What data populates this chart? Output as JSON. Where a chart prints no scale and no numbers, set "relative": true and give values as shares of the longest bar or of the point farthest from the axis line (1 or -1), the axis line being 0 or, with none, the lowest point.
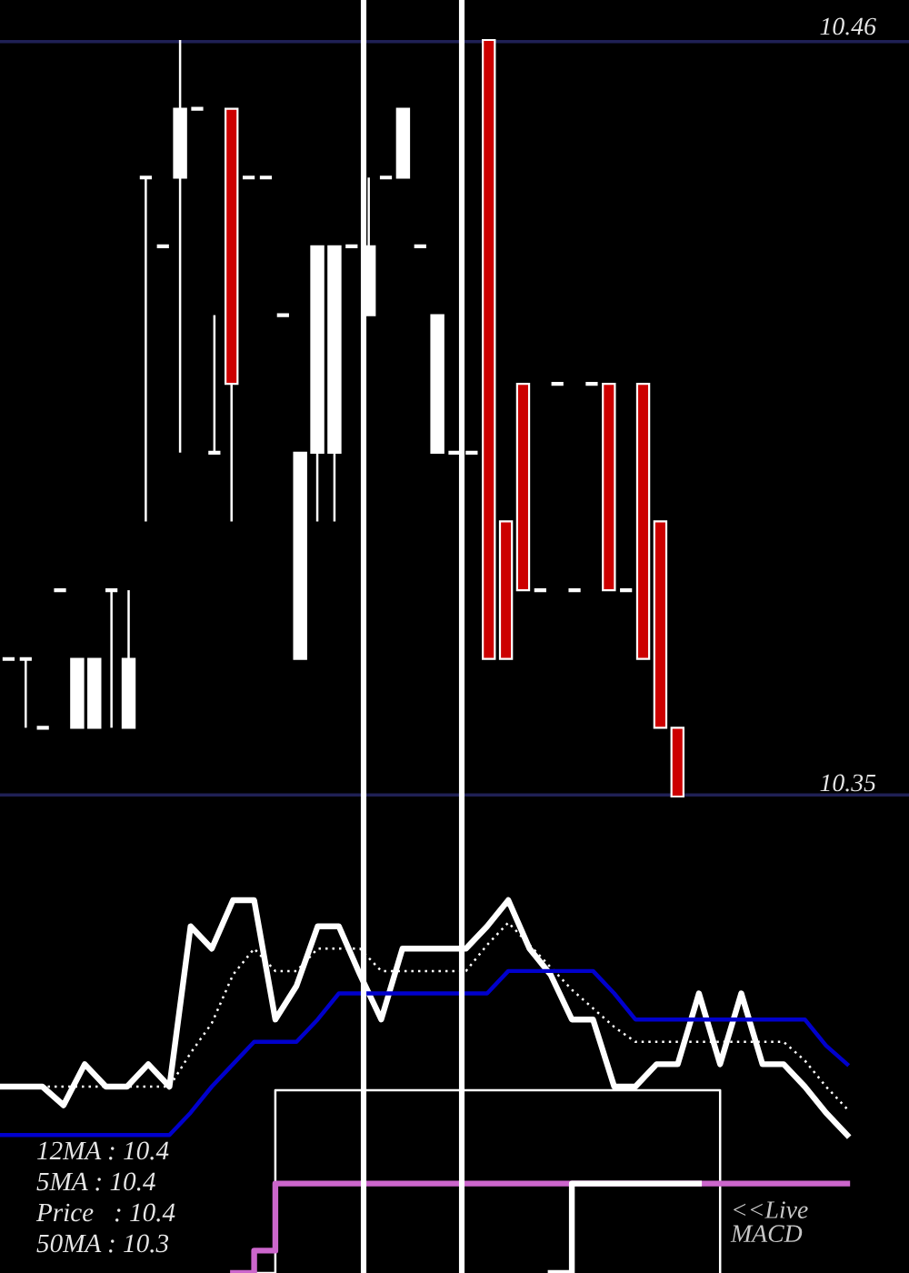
{
  "chart_data": [
    {
      "type": "candlestick",
      "categories": [
        null,
        null,
        null,
        null,
        null,
        null,
        null,
        null,
        null,
        null,
        null,
        null,
        null,
        null,
        null,
        null,
        null,
        null,
        null,
        null,
        null,
        null,
        null,
        null,
        null,
        null,
        null,
        null,
        null,
        null,
        null,
        null,
        null,
        null,
        null,
        null,
        null,
        null,
        null,
        null,
        null,
        null,
        null,
        null,
        null,
        null,
        null,
        null,
        null,
        null,
        null,
        null,
        null
      ],
      "ohlc": [
        [
          10.37,
          10.37,
          10.37,
          10.37
        ],
        [
          10.37,
          10.37,
          10.36,
          10.37
        ],
        [
          10.36,
          10.36,
          10.36,
          10.36
        ],
        [
          10.38,
          10.38,
          10.38,
          10.38
        ],
        [
          10.36,
          10.37,
          10.36,
          10.37
        ],
        [
          10.36,
          10.37,
          10.36,
          10.37
        ],
        [
          10.38,
          10.38,
          10.36,
          10.38
        ],
        [
          10.36,
          10.38,
          10.36,
          10.37
        ],
        [
          10.44,
          10.44,
          10.39,
          10.44
        ],
        [
          10.43,
          10.43,
          10.43,
          10.43
        ],
        [
          10.44,
          10.46,
          10.4,
          10.45
        ],
        [
          10.45,
          10.45,
          10.45,
          10.45
        ],
        [
          10.4,
          10.42,
          10.4,
          10.4
        ],
        [
          10.45,
          10.45,
          10.39,
          10.41
        ],
        [
          10.44,
          10.44,
          10.44,
          10.44
        ],
        [
          10.44,
          10.44,
          10.44,
          10.44
        ],
        [
          10.42,
          10.42,
          10.42,
          10.42
        ],
        [
          10.37,
          10.4,
          10.37,
          10.4
        ],
        [
          10.4,
          10.43,
          10.39,
          10.43
        ],
        [
          10.4,
          10.43,
          10.39,
          10.43
        ],
        [
          10.43,
          10.43,
          10.43,
          10.43
        ],
        [
          10.42,
          10.44,
          10.42,
          10.43
        ],
        [
          10.44,
          10.44,
          10.44,
          10.44
        ],
        [
          10.44,
          10.45,
          10.44,
          10.45
        ],
        [
          10.43,
          10.43,
          10.43,
          10.43
        ],
        [
          10.4,
          10.42,
          10.4,
          10.42
        ],
        [
          10.4,
          10.4,
          10.4,
          10.4
        ],
        [
          10.4,
          10.4,
          10.4,
          10.4
        ],
        [
          10.46,
          10.46,
          10.37,
          10.37
        ],
        [
          10.39,
          10.39,
          10.37,
          10.37
        ],
        [
          10.41,
          10.41,
          10.38,
          10.38
        ],
        [
          10.38,
          10.38,
          10.38,
          10.38
        ],
        [
          10.41,
          10.41,
          10.41,
          10.41
        ],
        [
          10.38,
          10.38,
          10.38,
          10.38
        ],
        [
          10.41,
          10.41,
          10.41,
          10.41
        ],
        [
          10.41,
          10.41,
          10.38,
          10.38
        ],
        [
          10.38,
          10.38,
          10.38,
          10.38
        ],
        [
          10.41,
          10.41,
          10.37,
          10.37
        ],
        [
          10.39,
          10.39,
          10.36,
          10.36
        ],
        [
          10.36,
          10.36,
          10.35,
          10.35
        ],
        null,
        null,
        null,
        null,
        null,
        null,
        null,
        null,
        null,
        null,
        null,
        null,
        null
      ],
      "colors": [
        "#ffffff",
        "#ffffff",
        "#ffffff",
        "#ffffff",
        "#ffffff",
        "#ffffff",
        "#ffffff",
        "#ffffff",
        "#ffffff",
        "#ffffff",
        "#ffffff",
        "#ffffff",
        "#ffffff",
        "#cc0000",
        "#ffffff",
        "#ffffff",
        "#ffffff",
        "#ffffff",
        "#ffffff",
        "#ffffff",
        "#ffffff",
        "#ffffff",
        "#ffffff",
        "#ffffff",
        "#ffffff",
        "#ffffff",
        "#ffffff",
        "#ffffff",
        "#cc0000",
        "#cc0000",
        "#cc0000",
        "#ffffff",
        "#ffffff",
        "#ffffff",
        "#ffffff",
        "#cc0000",
        "#ffffff",
        "#cc0000",
        "#cc0000",
        "#cc0000",
        null,
        null,
        null,
        null,
        null,
        null,
        null,
        null,
        null,
        null,
        null,
        null,
        null
      ],
      "ylim": [
        10.35,
        10.46
      ],
      "yticks": [
        10.35,
        10.46
      ],
      "grid": "y",
      "tick_labels": "y"
    },
    {
      "type": "line",
      "relative": true,
      "categories": [
        null,
        null,
        null,
        null,
        null,
        null,
        null,
        null,
        null,
        null,
        null,
        null,
        null,
        null,
        null,
        null,
        null,
        null,
        null,
        null,
        null,
        null,
        null,
        null,
        null,
        null,
        null,
        null,
        null,
        null,
        null,
        null,
        null,
        null,
        null,
        null,
        null,
        null,
        null,
        null,
        null
      ],
      "series": [
        {
          "color": "#ffffff",
          "values": [
            0.5,
            0.5,
            0.5,
            0.45,
            0.56,
            0.5,
            0.5,
            0.56,
            0.5,
            0.93,
            0.87,
            1,
            1,
            0.68,
            0.77,
            0.93,
            0.93,
            0.8,
            0.68,
            0.87,
            0.87,
            0.87,
            0.87,
            0.93,
            1,
            0.87,
            0.8,
            0.68,
            0.68,
            0.5,
            0.5,
            0.56,
            0.56,
            0.75,
            0.56,
            0.75,
            0.56,
            0.56,
            0.5,
            0.43,
            0.37
          ]
        },
        {
          "color": "#ffffff",
          "line_style": "dotted",
          "values": [
            0.5,
            0.5,
            0.5,
            0.5,
            0.5,
            0.5,
            0.5,
            0.5,
            0.5,
            0.59,
            0.67,
            0.8,
            0.87,
            0.81,
            0.81,
            0.87,
            0.87,
            0.87,
            0.81,
            0.81,
            0.81,
            0.81,
            0.81,
            0.88,
            0.94,
            0.88,
            0.82,
            0.76,
            0.71,
            0.66,
            0.62,
            0.62,
            0.62,
            0.62,
            0.62,
            0.62,
            0.62,
            0.62,
            0.57,
            0.5,
            0.44
          ]
        },
        {
          "color": "#0000cc",
          "values": [
            0.37,
            0.37,
            0.37,
            0.37,
            0.37,
            0.37,
            0.37,
            0.37,
            0.37,
            0.43,
            0.5,
            0.56,
            0.62,
            0.62,
            0.62,
            0.68,
            0.75,
            0.75,
            0.75,
            0.75,
            0.75,
            0.75,
            0.75,
            0.75,
            0.81,
            0.81,
            0.81,
            0.81,
            0.81,
            0.75,
            0.68,
            0.68,
            0.68,
            0.68,
            0.68,
            0.68,
            0.68,
            0.68,
            0.68,
            0.61,
            0.56
          ]
        },
        {
          "type": "step",
          "color": "#ffffff",
          "values": [
            null,
            null,
            null,
            null,
            null,
            null,
            null,
            null,
            null,
            null,
            null,
            null,
            0,
            0.49,
            0.49,
            0.49,
            0.49,
            0.49,
            0.49,
            0.49,
            0.49,
            0.49,
            0.49,
            0.49,
            0.49,
            0.49,
            0.49,
            0.49,
            0.49,
            0.49,
            0.49,
            0.49,
            0.49,
            0.49,
            0,
            null,
            null,
            null,
            null,
            null,
            null
          ]
        },
        {
          "type": "step",
          "color": "#cc66cc",
          "values": [
            null,
            null,
            null,
            null,
            null,
            null,
            null,
            null,
            null,
            null,
            null,
            0,
            0.06,
            0.24,
            0.24,
            0.24,
            0.24,
            0.24,
            0.24,
            0.24,
            0.24,
            0.24,
            0.24,
            0.24,
            0.24,
            0.24,
            0.24,
            0.24,
            0.24,
            0.24,
            0.24,
            0.24,
            0.24,
            0.24,
            0.24,
            0.24,
            0.24,
            0.24,
            0.24,
            0.24,
            0.24
          ]
        },
        {
          "type": "step",
          "color": "#ffffff",
          "values": [
            null,
            null,
            null,
            null,
            null,
            null,
            null,
            null,
            null,
            null,
            null,
            null,
            null,
            null,
            null,
            null,
            null,
            null,
            null,
            null,
            null,
            null,
            null,
            null,
            null,
            null,
            0,
            0.24,
            0.24,
            0.24,
            0.24,
            0.24,
            0.24,
            0.24,
            null,
            null,
            null,
            null,
            null,
            null,
            null
          ]
        }
      ],
      "annotations": [
        "12MA : 10.4",
        "5MA : 10.4",
        "Price   : 10.4",
        "50MA : 10.3",
        "<<Live\nMACD"
      ]
    }
  ]
}
